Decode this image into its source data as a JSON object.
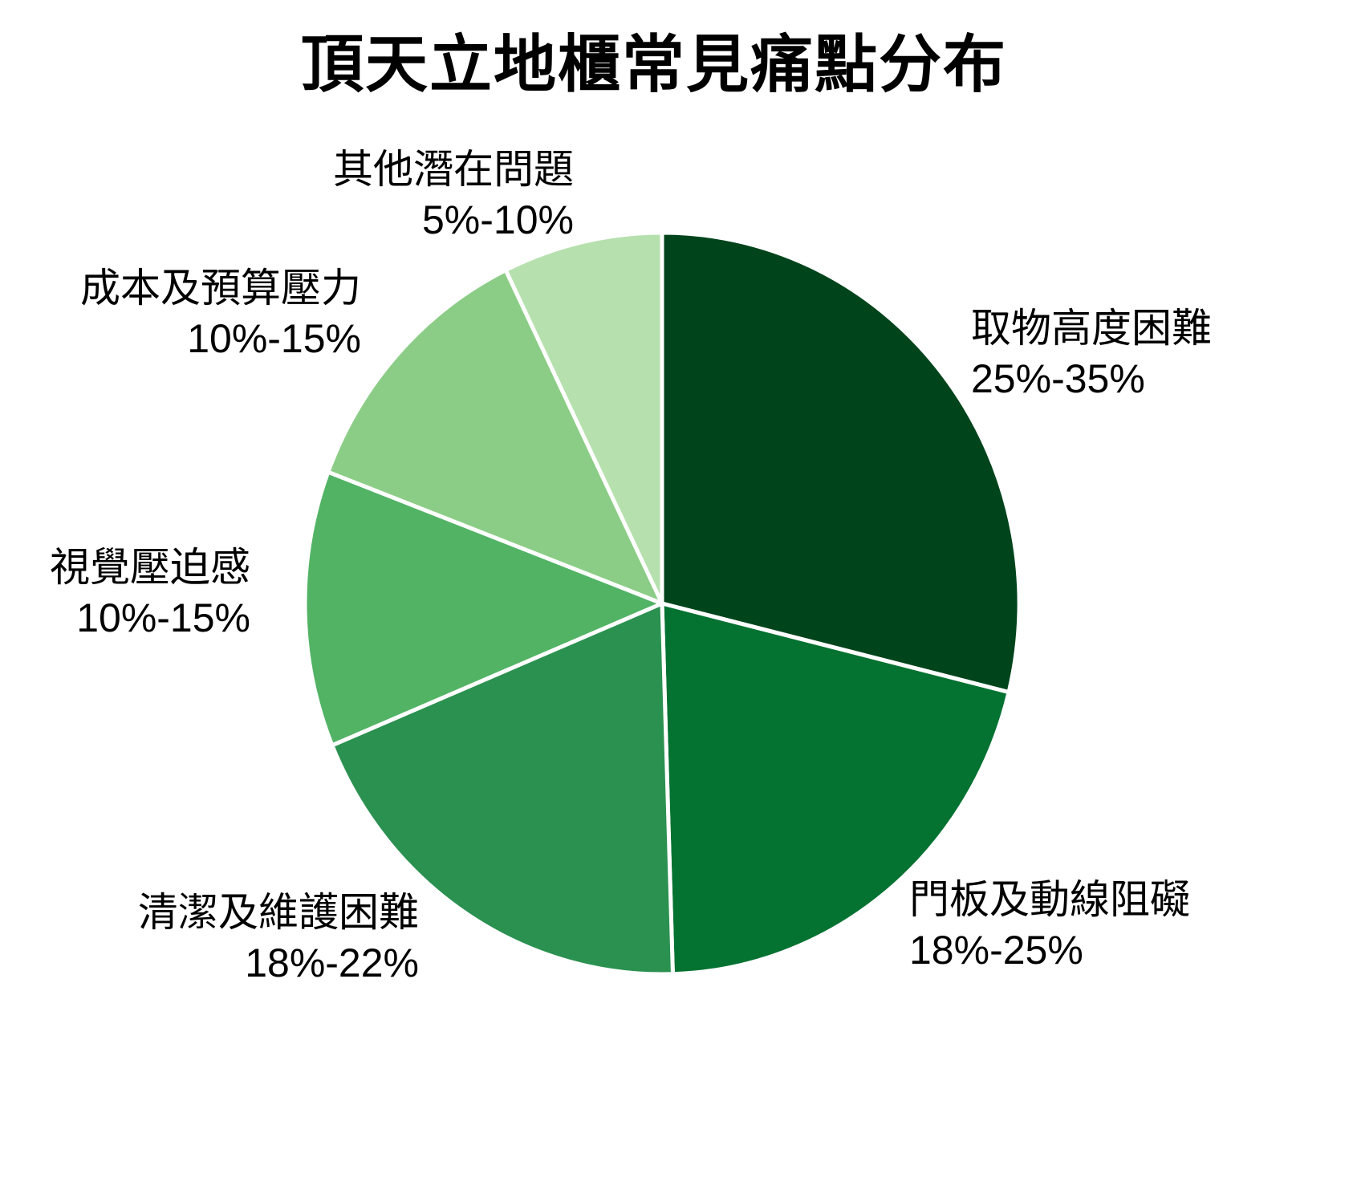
{
  "title": "頂天立地櫃常見痛點分布",
  "chart_data": {
    "type": "pie",
    "title": "頂天立地櫃常見痛點分布",
    "start_angle_deg": 0,
    "direction": "clockwise",
    "legend": "none",
    "background": "#ffffff",
    "separator_color": "#ffffff",
    "slices": [
      {
        "label": "取物高度困難",
        "range": "25%-35%",
        "value_mid": 30,
        "color": "#00441c"
      },
      {
        "label": "門板及動線阻礙",
        "range": "18%-25%",
        "value_mid": 21.5,
        "color": "#047231"
      },
      {
        "label": "清潔及維護困難",
        "range": "18%-22%",
        "value_mid": 20,
        "color": "#2b9150"
      },
      {
        "label": "視覺壓迫感",
        "range": "10%-15%",
        "value_mid": 12.5,
        "color": "#52b365"
      },
      {
        "label": "成本及預算壓力",
        "range": "10%-15%",
        "value_mid": 12.5,
        "color": "#8bcd86"
      },
      {
        "label": "其他潛在問題",
        "range": "5%-10%",
        "value_mid": 7.5,
        "color": "#b6e0ae"
      }
    ]
  }
}
